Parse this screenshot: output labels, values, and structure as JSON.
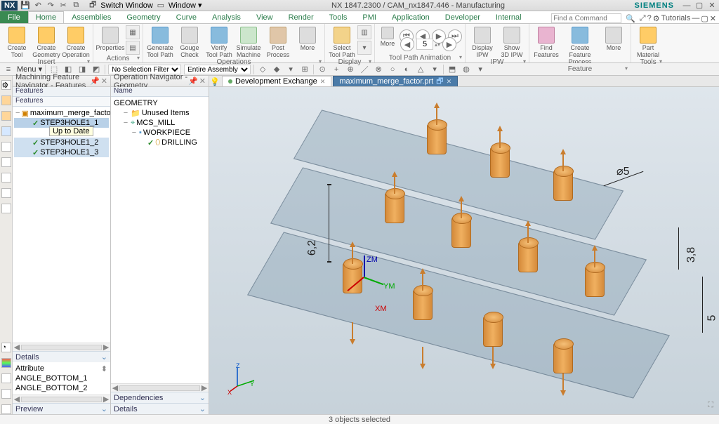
{
  "title_center": "NX 1847.2300 / CAM_nx1847.446 - Manufacturing",
  "brand": "SIEMENS",
  "titlebar": {
    "switch_window": "Switch Window",
    "window_menu": "Window ▾"
  },
  "ribbon_tabs": [
    "File",
    "Home",
    "Assemblies",
    "Geometry",
    "Curve",
    "Analysis",
    "View",
    "Render",
    "Tools",
    "PMI",
    "Application",
    "Developer",
    "Internal"
  ],
  "ribbon_active_tab": "Home",
  "search": {
    "placeholder": "Find a Command",
    "tutorials": "Tutorials"
  },
  "ribbon_groups": {
    "insert": {
      "label": "Insert",
      "buttons": [
        {
          "label": "Create\nTool",
          "color": "#f3b24a"
        },
        {
          "label": "Create\nGeometry",
          "color": "#f3b24a"
        },
        {
          "label": "Create\nOperation",
          "color": "#f3b24a"
        }
      ]
    },
    "actions": {
      "label": "Actions",
      "buttons": [
        {
          "label": "Properties",
          "color": "#cfe2b8"
        }
      ]
    },
    "operations": {
      "label": "Operations",
      "buttons": [
        {
          "label": "Generate\nTool Path",
          "color": "#bed7ef"
        },
        {
          "label": "Gouge\nCheck",
          "color": "#e0e0e0"
        },
        {
          "label": "Verify\nTool Path",
          "color": "#bed7ef"
        },
        {
          "label": "Simulate\nMachine",
          "color": "#cce6cc"
        },
        {
          "label": "Post\nProcess",
          "color": "#e0c6a8"
        },
        {
          "label": "More",
          "color": "#eee"
        }
      ]
    },
    "display": {
      "label": "Display",
      "buttons": [
        {
          "label": "Select\nTool Path",
          "color": "#f3d38a"
        }
      ]
    },
    "toolpath_anim": {
      "label": "Tool Path Animation",
      "frame_value": "5"
    },
    "ipw": {
      "label": "IPW",
      "buttons": [
        {
          "label": "Display\nIPW",
          "color": "#ddd"
        },
        {
          "label": "Show\n3D IPW",
          "color": "#ddd"
        }
      ]
    },
    "feature": {
      "label": "Feature",
      "buttons": [
        {
          "label": "Find\nFeatures",
          "color": "#e9b4d0"
        },
        {
          "label": "Create Feature\nProcess",
          "color": "#bed7ef"
        },
        {
          "label": "More",
          "color": "#eee"
        }
      ]
    },
    "tools": {
      "label": "Tools",
      "buttons": [
        {
          "label": "Part\nMaterial",
          "color": "#f3b24a"
        }
      ]
    }
  },
  "subtoolbar": {
    "menu_label": "Menu ▾",
    "filter": "No Selection Filter",
    "assembly": "Entire Assembly"
  },
  "panel_features": {
    "title": "Machining Feature Navigator - Features",
    "header": "Features",
    "column": "Features",
    "root": "maximum_merge_factor",
    "items": [
      {
        "label": "STEP3HOLE1_1",
        "selected": true
      },
      {
        "label": "Up to Date",
        "tooltip": true
      },
      {
        "label": "STEP3HOLE1_2",
        "selected": true
      }
    ],
    "details_label": "Details",
    "attribute_label": "Attribute",
    "attributes": [
      "ANGLE_BOTTOM_1",
      "ANGLE_BOTTOM_2"
    ],
    "preview_label": "Preview"
  },
  "panel_ops": {
    "title": "Operation Navigator - Geometry",
    "column": "Name",
    "root": "GEOMETRY",
    "nodes": [
      {
        "label": "Unused Items",
        "indent": 1,
        "icon": "folder"
      },
      {
        "label": "MCS_MILL",
        "indent": 1,
        "icon": "coords"
      },
      {
        "label": "WORKPIECE",
        "indent": 2,
        "icon": "block"
      },
      {
        "label": "DRILLING",
        "indent": 3,
        "icon": "drill",
        "mark": "✓"
      }
    ],
    "dependencies_label": "Dependencies",
    "details_label": "Details"
  },
  "doc_tabs": [
    {
      "label": "Development Exchange",
      "active": false
    },
    {
      "label": "maximum_merge_factor.prt",
      "active": true,
      "dirty": true
    }
  ],
  "dimensions": {
    "diameter": "⌀5",
    "height1": "6,2",
    "height2": "3,8",
    "height3": "5"
  },
  "axes": {
    "zm": "ZM",
    "ym": "YM",
    "xm": "XM"
  },
  "statusbar": {
    "selection": "3 objects selected"
  },
  "colors": {
    "cylinder": "#e09a42",
    "slab_fill": "rgba(120,150,170,0.35)",
    "slab_edge": "rgba(70,90,110,0.5)",
    "viewport_top": "#dfe6ec",
    "viewport_bot": "#c7d2da"
  }
}
